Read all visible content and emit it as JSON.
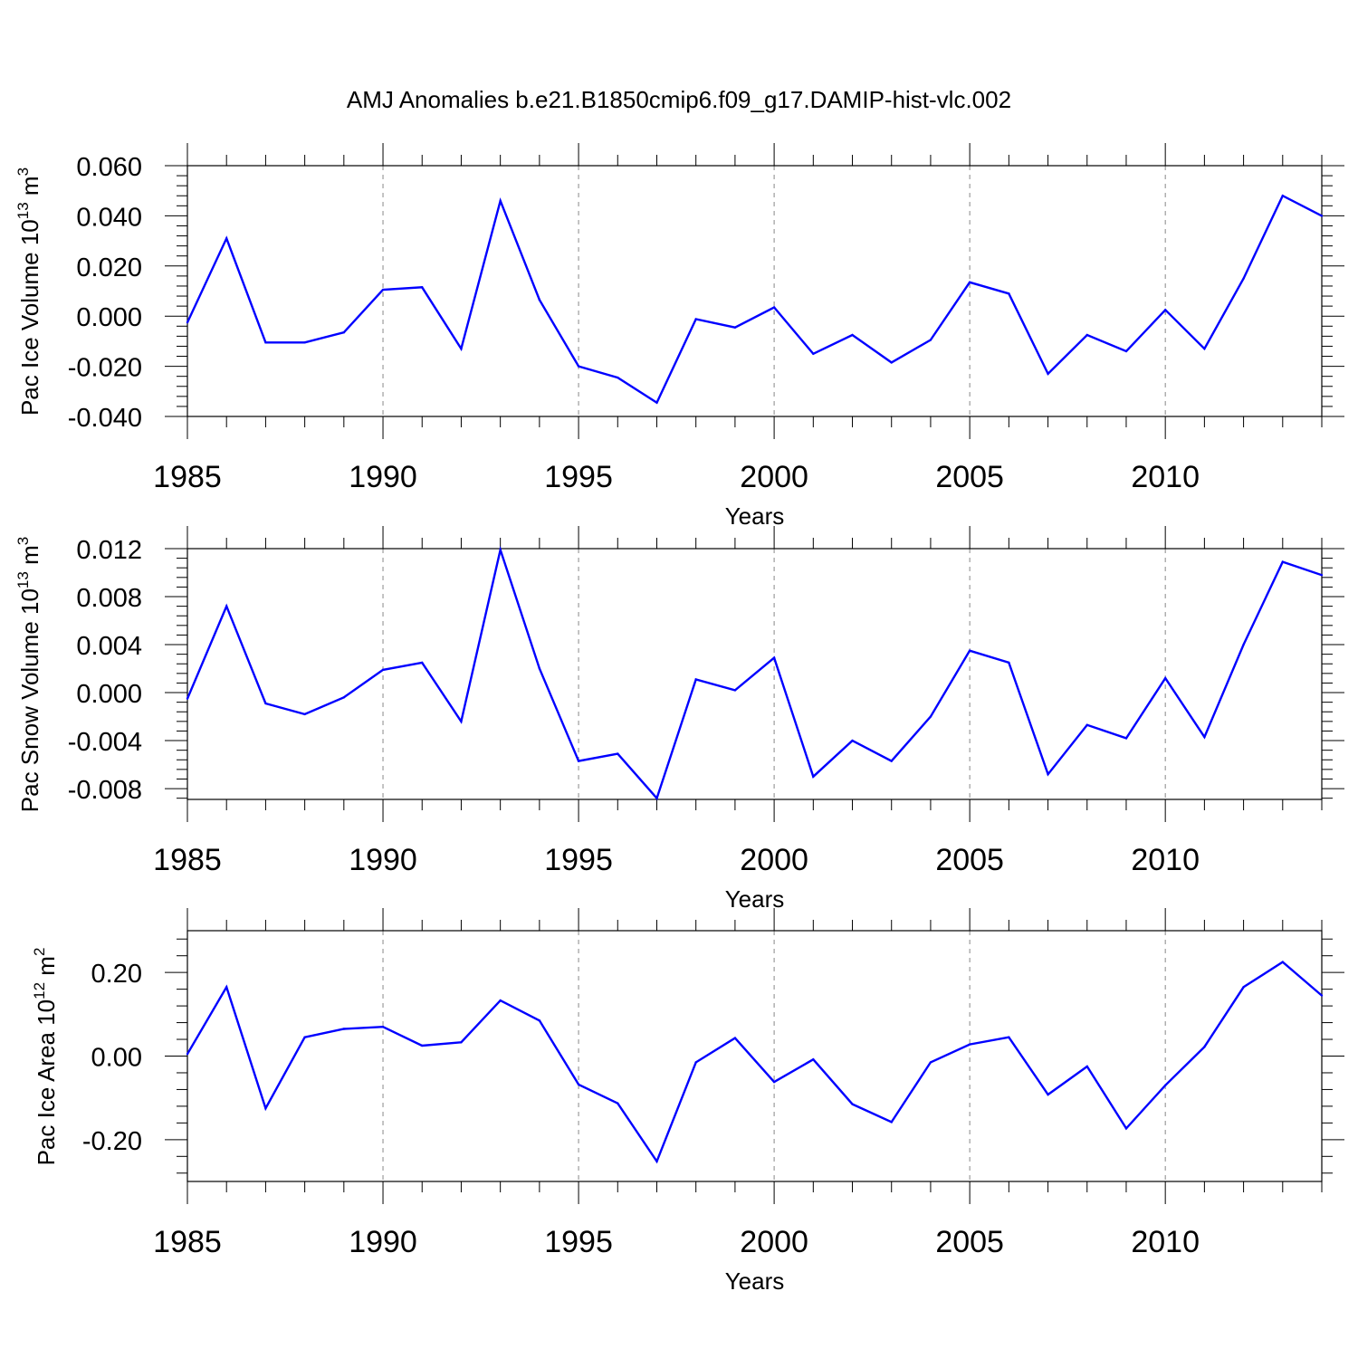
{
  "title": "AMJ Anomalies b.e21.B1850cmip6.f09_g17.DAMIP-hist-vlc.002",
  "chart_data": [
    {
      "type": "line",
      "name": "pac-ice-volume",
      "ylabel": "Pac Ice Volume 10",
      "ylabel_exp": "13",
      "ylabel_unit": " m",
      "ylabel_unit_exp": "3",
      "xlabel": "Years",
      "xlim": [
        1985,
        2014
      ],
      "ylim": [
        -0.04,
        0.06
      ],
      "yticks": [
        {
          "value": -0.04,
          "label": "-0.040"
        },
        {
          "value": -0.02,
          "label": "-0.020"
        },
        {
          "value": 0.0,
          "label": "0.000"
        },
        {
          "value": 0.02,
          "label": "0.020"
        },
        {
          "value": 0.04,
          "label": "0.040"
        },
        {
          "value": 0.06,
          "label": "0.060"
        }
      ],
      "xticks": [
        {
          "value": 1985,
          "label": "1985"
        },
        {
          "value": 1990,
          "label": "1990"
        },
        {
          "value": 1995,
          "label": "1995"
        },
        {
          "value": 2000,
          "label": "2000"
        },
        {
          "value": 2005,
          "label": "2005"
        },
        {
          "value": 2010,
          "label": "2010"
        }
      ],
      "series_color": "#0000ff",
      "x": [
        1985,
        1986,
        1987,
        1988,
        1989,
        1990,
        1991,
        1992,
        1993,
        1994,
        1995,
        1996,
        1997,
        1998,
        1999,
        2000,
        2001,
        2002,
        2003,
        2004,
        2005,
        2006,
        2007,
        2008,
        2009,
        2010,
        2011,
        2012,
        2013,
        2014
      ],
      "values": [
        -0.0025,
        0.031,
        -0.0105,
        -0.0105,
        -0.0065,
        0.0105,
        0.0115,
        -0.013,
        0.046,
        0.0065,
        -0.02,
        -0.0245,
        -0.0345,
        -0.0012,
        -0.0045,
        0.0035,
        -0.015,
        -0.0075,
        -0.0185,
        -0.0095,
        0.0135,
        0.009,
        -0.023,
        -0.0075,
        -0.014,
        0.0025,
        -0.013,
        0.015,
        0.048,
        0.04
      ]
    },
    {
      "type": "line",
      "name": "pac-snow-volume",
      "ylabel": "Pac Snow Volume 10",
      "ylabel_exp": "13",
      "ylabel_unit": " m",
      "ylabel_unit_exp": "3",
      "xlabel": "Years",
      "xlim": [
        1985,
        2014
      ],
      "ylim": [
        -0.0089,
        0.012
      ],
      "yticks": [
        {
          "value": -0.008,
          "label": "-0.008"
        },
        {
          "value": -0.004,
          "label": "-0.004"
        },
        {
          "value": 0.0,
          "label": "0.000"
        },
        {
          "value": 0.004,
          "label": "0.004"
        },
        {
          "value": 0.008,
          "label": "0.008"
        },
        {
          "value": 0.012,
          "label": "0.012"
        }
      ],
      "xticks": [
        {
          "value": 1985,
          "label": "1985"
        },
        {
          "value": 1990,
          "label": "1990"
        },
        {
          "value": 1995,
          "label": "1995"
        },
        {
          "value": 2000,
          "label": "2000"
        },
        {
          "value": 2005,
          "label": "2005"
        },
        {
          "value": 2010,
          "label": "2010"
        }
      ],
      "series_color": "#0000ff",
      "x": [
        1985,
        1986,
        1987,
        1988,
        1989,
        1990,
        1991,
        1992,
        1993,
        1994,
        1995,
        1996,
        1997,
        1998,
        1999,
        2000,
        2001,
        2002,
        2003,
        2004,
        2005,
        2006,
        2007,
        2008,
        2009,
        2010,
        2011,
        2012,
        2013,
        2014
      ],
      "values": [
        -0.0005,
        0.0072,
        -0.0009,
        -0.0018,
        -0.0004,
        0.0019,
        0.0025,
        -0.0024,
        0.0119,
        0.002,
        -0.0057,
        -0.0051,
        -0.0088,
        0.0011,
        0.0002,
        0.0029,
        -0.007,
        -0.004,
        -0.0057,
        -0.002,
        0.0035,
        0.0025,
        -0.0068,
        -0.0027,
        -0.0038,
        0.0012,
        -0.0037,
        0.004,
        0.0109,
        0.0098
      ]
    },
    {
      "type": "line",
      "name": "pac-ice-area",
      "ylabel": "Pac Ice Area 10",
      "ylabel_exp": "12",
      "ylabel_unit": " m",
      "ylabel_unit_exp": "2",
      "xlabel": "Years",
      "xlim": [
        1985,
        2014
      ],
      "ylim": [
        -0.3,
        0.3
      ],
      "yticks": [
        {
          "value": -0.2,
          "label": "-0.20"
        },
        {
          "value": 0.0,
          "label": "0.00"
        },
        {
          "value": 0.2,
          "label": "0.20"
        }
      ],
      "xticks": [
        {
          "value": 1985,
          "label": "1985"
        },
        {
          "value": 1990,
          "label": "1990"
        },
        {
          "value": 1995,
          "label": "1995"
        },
        {
          "value": 2000,
          "label": "2000"
        },
        {
          "value": 2005,
          "label": "2005"
        },
        {
          "value": 2010,
          "label": "2010"
        }
      ],
      "series_color": "#0000ff",
      "x": [
        1985,
        1986,
        1987,
        1988,
        1989,
        1990,
        1991,
        1992,
        1993,
        1994,
        1995,
        1996,
        1997,
        1998,
        1999,
        2000,
        2001,
        2002,
        2003,
        2004,
        2005,
        2006,
        2007,
        2008,
        2009,
        2010,
        2011,
        2012,
        2013,
        2014
      ],
      "values": [
        0.005,
        0.165,
        -0.125,
        0.045,
        0.065,
        0.07,
        0.025,
        0.033,
        0.133,
        0.085,
        -0.068,
        -0.113,
        -0.252,
        -0.015,
        0.043,
        -0.062,
        -0.008,
        -0.115,
        -0.158,
        -0.015,
        0.028,
        0.045,
        -0.092,
        -0.025,
        -0.173,
        -0.07,
        0.022,
        0.165,
        0.225,
        0.145
      ]
    }
  ]
}
